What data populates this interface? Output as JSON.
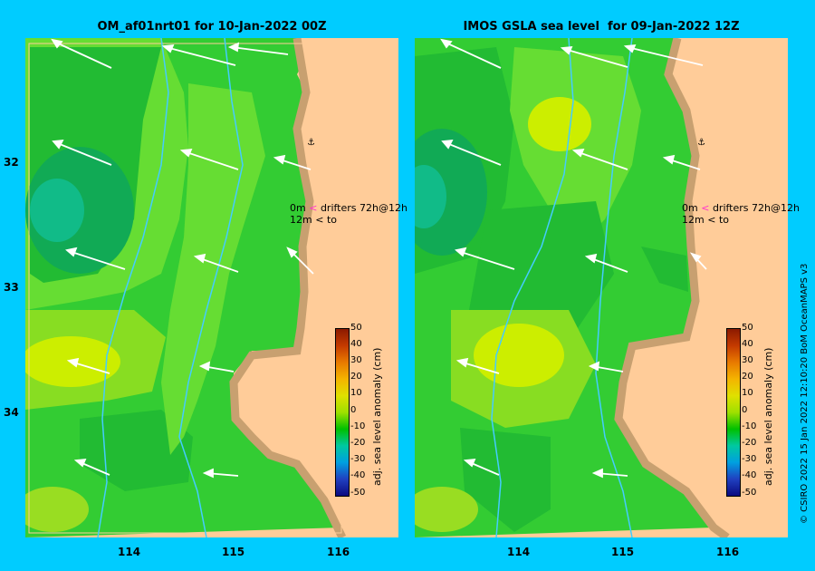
{
  "panels": [
    {
      "title": "OM_af01nrt01 for 10-Jan-2022 00Z",
      "legend_line1": "drifters 72h@12h",
      "legend_0m": "0m",
      "legend_12m": "12m",
      "legend_to": "to"
    },
    {
      "title": "IMOS GSLA sea level  for 09-Jan-2022 12Z",
      "legend_line1": "drifters 72h@12h",
      "legend_0m": "0m",
      "legend_12m": "12m",
      "legend_to": "to"
    }
  ],
  "lat_labels": [
    "32",
    "33",
    "34"
  ],
  "lon_labels": [
    "114",
    "115",
    "116"
  ],
  "colorbar": {
    "label": "adj. sea level anomaly (cm)",
    "ticks": [
      "50",
      "40",
      "30",
      "20",
      "10",
      "0",
      "-10",
      "-20",
      "-30",
      "-40",
      "-50"
    ]
  },
  "credit": "© CSIRO 2022   15 Jan 2022 12:10:20 BoM OceanMAPS v3",
  "colors": {
    "background": "#00ccff",
    "land": "#ffcc99",
    "coast": "#c8a070",
    "anomaly_zero": "#33cc33",
    "anomaly_pos": "#ccee00",
    "anomaly_neg": "#00aa55",
    "current_arrow": "#ffffff",
    "drifter_marker": "#ff33cc"
  },
  "icons": [
    "current-arrow-icon",
    "drifter-0m-icon",
    "drifter-12m-icon",
    "anchor-icon"
  ]
}
